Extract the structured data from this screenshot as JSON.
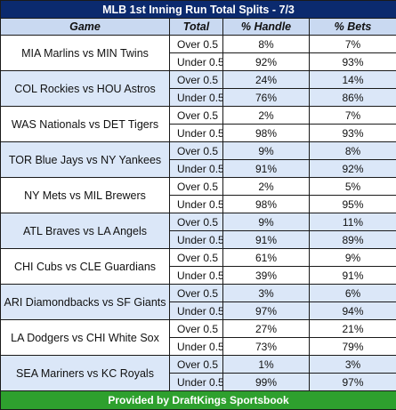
{
  "title": "MLB 1st Inning Run Total Splits - 7/3",
  "headers": {
    "game": "Game",
    "total": "Total",
    "handle": "% Handle",
    "bets": "% Bets"
  },
  "games": [
    {
      "name": "MIA Marlins vs MIN Twins",
      "rows": [
        {
          "line": "Over 0.5",
          "handle": "8%",
          "bets": "7%"
        },
        {
          "line": "Under 0.5",
          "handle": "92%",
          "bets": "93%"
        }
      ]
    },
    {
      "name": "COL Rockies vs HOU Astros",
      "rows": [
        {
          "line": "Over 0.5",
          "handle": "24%",
          "bets": "14%"
        },
        {
          "line": "Under 0.5",
          "handle": "76%",
          "bets": "86%"
        }
      ]
    },
    {
      "name": "WAS Nationals vs DET Tigers",
      "rows": [
        {
          "line": "Over 0.5",
          "handle": "2%",
          "bets": "7%"
        },
        {
          "line": "Under 0.5",
          "handle": "98%",
          "bets": "93%"
        }
      ]
    },
    {
      "name": "TOR Blue Jays vs NY Yankees",
      "rows": [
        {
          "line": "Over 0.5",
          "handle": "9%",
          "bets": "8%"
        },
        {
          "line": "Under 0.5",
          "handle": "91%",
          "bets": "92%"
        }
      ]
    },
    {
      "name": "NY Mets vs MIL Brewers",
      "rows": [
        {
          "line": "Over 0.5",
          "handle": "2%",
          "bets": "5%"
        },
        {
          "line": "Under 0.5",
          "handle": "98%",
          "bets": "95%"
        }
      ]
    },
    {
      "name": "ATL Braves vs LA Angels",
      "rows": [
        {
          "line": "Over 0.5",
          "handle": "9%",
          "bets": "11%"
        },
        {
          "line": "Under 0.5",
          "handle": "91%",
          "bets": "89%"
        }
      ]
    },
    {
      "name": "CHI Cubs vs CLE Guardians",
      "rows": [
        {
          "line": "Over 0.5",
          "handle": "61%",
          "bets": "9%"
        },
        {
          "line": "Under 0.5",
          "handle": "39%",
          "bets": "91%"
        }
      ]
    },
    {
      "name": "ARI Diamondbacks vs SF Giants",
      "rows": [
        {
          "line": "Over 0.5",
          "handle": "3%",
          "bets": "6%"
        },
        {
          "line": "Under 0.5",
          "handle": "97%",
          "bets": "94%"
        }
      ]
    },
    {
      "name": "LA Dodgers vs CHI White Sox",
      "rows": [
        {
          "line": "Over 0.5",
          "handle": "27%",
          "bets": "21%"
        },
        {
          "line": "Under 0.5",
          "handle": "73%",
          "bets": "79%"
        }
      ]
    },
    {
      "name": "SEA Mariners vs KC Royals",
      "rows": [
        {
          "line": "Over 0.5",
          "handle": "1%",
          "bets": "3%"
        },
        {
          "line": "Under 0.5",
          "handle": "99%",
          "bets": "97%"
        }
      ]
    }
  ],
  "footer": "Provided by DraftKings Sportsbook",
  "colors": {
    "title_bg": "#0b2a6e",
    "header_bg": "#c9d9f1",
    "alt_row_bg": "#dbe7f8",
    "footer_bg": "#2ea02e"
  }
}
